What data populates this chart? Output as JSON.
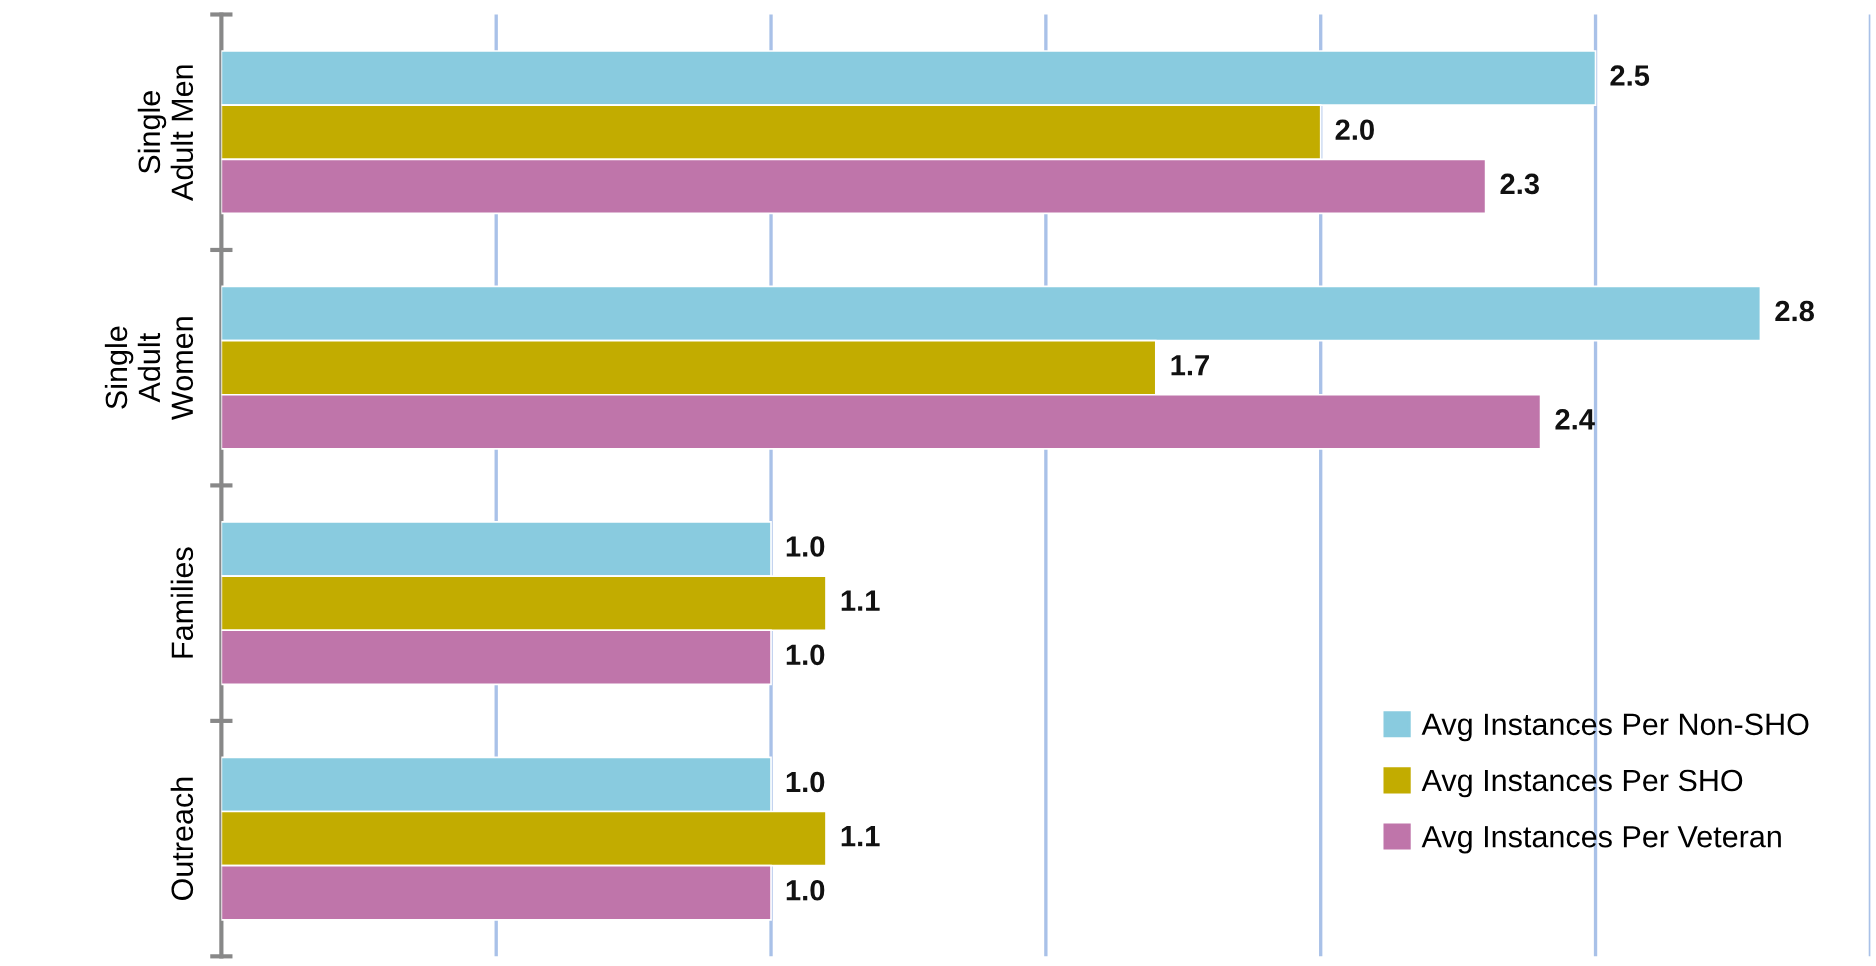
{
  "chart_data": {
    "type": "bar",
    "orientation": "horizontal",
    "categories": [
      "Single\nAdult Men",
      "Single\nAdult\nWomen",
      "Families",
      "Outreach"
    ],
    "series": [
      {
        "name": "Avg Instances Per Non-SHO",
        "color": "#89cbdf",
        "values": [
          2.5,
          2.8,
          1.0,
          1.0
        ],
        "value_labels": [
          "2.5",
          "2.8",
          "1.0",
          "1.0"
        ]
      },
      {
        "name": "Avg Instances Per SHO",
        "color": "#c2ac00",
        "values": [
          2.0,
          1.7,
          1.1,
          1.1
        ],
        "value_labels": [
          "2.0",
          "1.7",
          "1.1",
          "1.1"
        ]
      },
      {
        "name": "Avg Instances Per Veteran",
        "color": "#bf75aa",
        "values": [
          2.3,
          2.4,
          1.0,
          1.0
        ],
        "value_labels": [
          "2.3",
          "2.4",
          "1.0",
          "1.0"
        ]
      }
    ],
    "xlim": [
      0,
      3
    ],
    "xticks": [
      {
        "value": 0,
        "label": null
      },
      {
        "value": 0.5,
        "label": null
      },
      {
        "value": 1,
        "label": null
      },
      {
        "value": 1.5,
        "label": null
      },
      {
        "value": 2,
        "label": null
      },
      {
        "value": 2.5,
        "label": null
      },
      {
        "value": 3,
        "label": null
      }
    ],
    "tick_labels": "y",
    "grid": "x",
    "legend": "bottom right"
  }
}
